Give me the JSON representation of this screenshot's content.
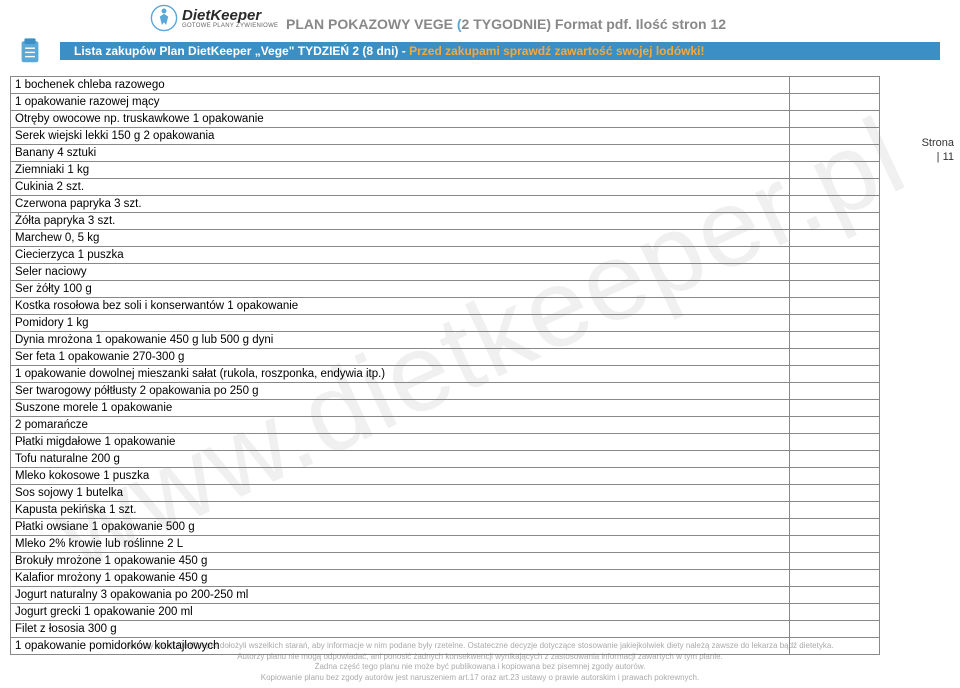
{
  "logo": {
    "brand": "DietKeeper",
    "sub": "GOTOWE PLANY ŻYWIENIOWE"
  },
  "header": {
    "title_prefix": "PLAN POKAZOWY VEGE ",
    "title_paren": "(",
    "title_mid": "2 TYGODNIE)",
    "title_format": "   Format pdf.",
    "title_pages": "   Ilość stron 12"
  },
  "banner": {
    "text_a": "Lista zakupów Plan DietKeeper „Vege\" TYDZIEŃ 2 (8 dni) - ",
    "text_b": "Przed zakupami sprawdź zawartość swojej lodówki!"
  },
  "page_side": {
    "l1": "Strona",
    "l2": "| 11"
  },
  "items": [
    "1 bochenek chleba razowego",
    "1 opakowanie razowej mący",
    "Otręby owocowe np. truskawkowe 1 opakowanie",
    "Serek wiejski lekki 150 g 2 opakowania",
    "Banany 4 sztuki",
    "Ziemniaki 1 kg",
    "Cukinia 2 szt.",
    "Czerwona papryka 3 szt.",
    "Żółta papryka 3 szt.",
    "Marchew 0, 5 kg",
    "Ciecierzyca 1 puszka",
    "Seler naciowy",
    "Ser żółty 100 g",
    "Kostka rosołowa bez soli i konserwantów 1 opakowanie",
    "Pomidory 1 kg",
    "Dynia mrożona 1 opakowanie 450 g lub 500 g dyni",
    "Ser feta 1 opakowanie 270-300 g",
    "1 opakowanie dowolnej mieszanki sałat (rukola, roszponka, endywia itp.)",
    "Ser twarogowy półtłusty 2 opakowania po 250 g",
    "Suszone morele 1 opakowanie",
    "2 pomarańcze",
    "Płatki migdałowe 1 opakowanie",
    "Tofu naturalne 200 g",
    "Mleko kokosowe 1 puszka",
    "Sos sojowy 1 butelka",
    "Kapusta pekińska 1 szt.",
    "Płatki owsiane 1 opakowanie 500 g",
    "Mleko 2% krowie lub roślinne 2 L",
    "Brokuły mrożone 1 opakowanie 450 g",
    "Kalafior mrożony 1 opakowanie 450 g",
    "Jogurt naturalny 3 opakowania po 200-250 ml",
    "Jogurt grecki 1 opakowanie 200 ml",
    "Filet z łososia 300 g",
    "1 opakowanie pomidorków koktajlowych"
  ],
  "footer": {
    "l1": "Autorzy planu DietKeeper dołożyli wszelkich starań, aby informacje w nim podane były rzetelne. Ostateczne decyzje dotyczące stosowanie jakiejkolwiek diety należą zawsze do lekarza bądź dietetyka.",
    "l2": "Autorzy planu nie mogą odpowiadać, ani ponosić żadnych konsekwencji wynikających z zastosowania informacji zawartych w tym planie.",
    "l3": "Żadna część tego planu nie może być publikowana i kopiowana bez pisemnej zgody autorów.",
    "l4": "Kopiowanie planu bez zgody autorów jest naruszeniem art.17 oraz art.23 ustawy o prawie autorskim i prawach pokrewnych."
  },
  "watermark": "www.dietkeeper.pl",
  "colors": {
    "banner_bg": "#3b8fc4",
    "banner_highlight": "#f7a83b",
    "title_grey": "#888888",
    "paren_blue": "#5aa8d8",
    "border": "#888888",
    "watermark": "#f0f0f0",
    "footer": "#aaaaaa"
  }
}
